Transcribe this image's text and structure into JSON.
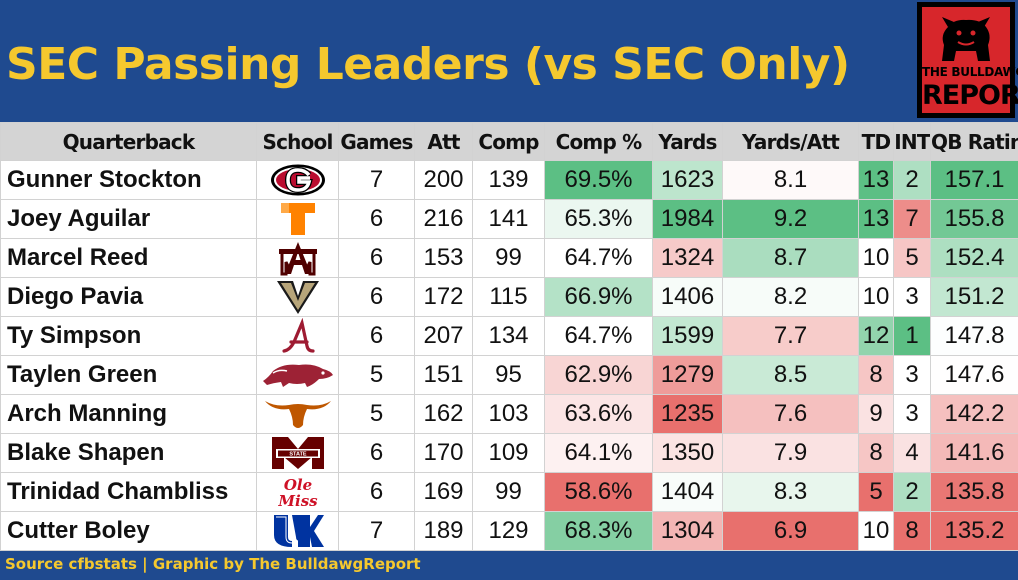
{
  "title": "SEC Passing Leaders (vs SEC Only)",
  "brand": {
    "line1": "THE BULLDAWG",
    "line2": "REPORT"
  },
  "footer": "Source cfbstats | Graphic by The BulldawgReport",
  "colors": {
    "background": "#1f4a8f",
    "title": "#f5c82e",
    "header_bg": "#d4d4d4",
    "high": "#5cbf84",
    "mid": "#ffffff",
    "low": "#e8706d"
  },
  "chart_data": {
    "type": "table",
    "columns": [
      "Quarterback",
      "School",
      "Games",
      "Att",
      "Comp",
      "Comp %",
      "Yards",
      "Yards/Att",
      "TD",
      "INT",
      "QB Rating"
    ],
    "rows": [
      {
        "qb": "Gunner Stockton",
        "school": "georgia-logo",
        "games": "7",
        "att": "200",
        "comp": "139",
        "comp_pct": "69.5%",
        "yards": "1623",
        "ypa": "8.1",
        "td": "13",
        "int": "2",
        "rating": "157.1"
      },
      {
        "qb": "Joey Aguilar",
        "school": "tennessee-logo",
        "games": "6",
        "att": "216",
        "comp": "141",
        "comp_pct": "65.3%",
        "yards": "1984",
        "ypa": "9.2",
        "td": "13",
        "int": "7",
        "rating": "155.8"
      },
      {
        "qb": "Marcel Reed",
        "school": "texas-am-logo",
        "games": "6",
        "att": "153",
        "comp": "99",
        "comp_pct": "64.7%",
        "yards": "1324",
        "ypa": "8.7",
        "td": "10",
        "int": "5",
        "rating": "152.4"
      },
      {
        "qb": "Diego Pavia",
        "school": "vanderbilt-logo",
        "games": "6",
        "att": "172",
        "comp": "115",
        "comp_pct": "66.9%",
        "yards": "1406",
        "ypa": "8.2",
        "td": "10",
        "int": "3",
        "rating": "151.2"
      },
      {
        "qb": "Ty Simpson",
        "school": "alabama-logo",
        "games": "6",
        "att": "207",
        "comp": "134",
        "comp_pct": "64.7%",
        "yards": "1599",
        "ypa": "7.7",
        "td": "12",
        "int": "1",
        "rating": "147.8"
      },
      {
        "qb": "Taylen Green",
        "school": "arkansas-logo",
        "games": "5",
        "att": "151",
        "comp": "95",
        "comp_pct": "62.9%",
        "yards": "1279",
        "ypa": "8.5",
        "td": "8",
        "int": "3",
        "rating": "147.6"
      },
      {
        "qb": "Arch Manning",
        "school": "texas-logo",
        "games": "5",
        "att": "162",
        "comp": "103",
        "comp_pct": "63.6%",
        "yards": "1235",
        "ypa": "7.6",
        "td": "9",
        "int": "3",
        "rating": "142.2"
      },
      {
        "qb": "Blake Shapen",
        "school": "mississippi-state-logo",
        "games": "6",
        "att": "170",
        "comp": "109",
        "comp_pct": "64.1%",
        "yards": "1350",
        "ypa": "7.9",
        "td": "8",
        "int": "4",
        "rating": "141.6"
      },
      {
        "qb": "Trinidad Chambliss",
        "school": "ole-miss-logo",
        "games": "6",
        "att": "169",
        "comp": "99",
        "comp_pct": "58.6%",
        "yards": "1404",
        "ypa": "8.3",
        "td": "5",
        "int": "2",
        "rating": "135.8"
      },
      {
        "qb": "Cutter Boley",
        "school": "kentucky-logo",
        "games": "7",
        "att": "189",
        "comp": "129",
        "comp_pct": "68.3%",
        "yards": "1304",
        "ypa": "6.9",
        "td": "10",
        "int": "8",
        "rating": "135.2"
      }
    ],
    "heat_columns": [
      "comp_pct",
      "yards",
      "ypa",
      "td",
      "int",
      "rating"
    ],
    "inverted_heat_columns": [
      "int"
    ]
  }
}
